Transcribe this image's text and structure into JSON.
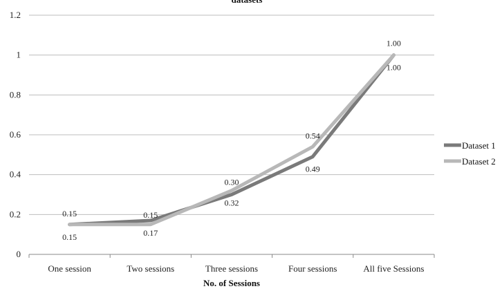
{
  "chart_data": {
    "type": "line",
    "title": "datasets",
    "xlabel": "No. of Sessions",
    "ylabel": "",
    "categories": [
      "One session",
      "Two sessions",
      "Three sessions",
      "Four sessions",
      "All five Sessions"
    ],
    "ylim": [
      0,
      1.2
    ],
    "yticks": [
      0,
      0.2,
      0.4,
      0.6,
      0.8,
      1,
      1.2
    ],
    "ytick_labels": [
      "0",
      "0.2",
      "0.4",
      "0.6",
      "0.8",
      "1",
      "1.2"
    ],
    "grid": true,
    "legend_position": "right",
    "series": [
      {
        "name": "Dataset 1",
        "color": "#7a7a7a",
        "values": [
          0.15,
          0.17,
          0.3,
          0.49,
          1.0
        ],
        "labels": [
          "0.15",
          "0.17",
          "0.30",
          "0.49",
          "1.00"
        ]
      },
      {
        "name": "Dataset 2",
        "color": "#b8b8b8",
        "values": [
          0.15,
          0.15,
          0.32,
          0.54,
          1.0
        ],
        "labels": [
          "0.15",
          "0.15",
          "0.32",
          "0.54",
          "1.00"
        ]
      }
    ]
  }
}
